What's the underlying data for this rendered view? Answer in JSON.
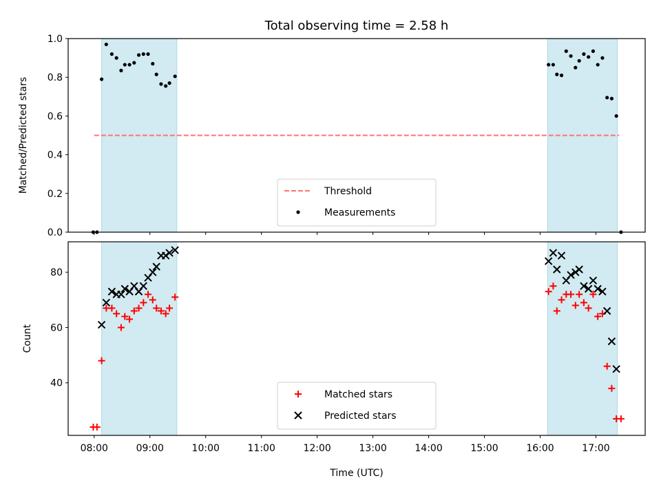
{
  "chart_data": {
    "type": "scatter",
    "title": "Total observing time = 2.58 h",
    "xlabel": "Time (UTC)",
    "x_ticks": [
      "08:00",
      "09:00",
      "10:00",
      "11:00",
      "12:00",
      "13:00",
      "14:00",
      "15:00",
      "16:00",
      "17:00"
    ],
    "xlim": [
      "07:32",
      "17:53"
    ],
    "observing_windows": [
      [
        "08:08",
        "09:29"
      ],
      [
        "16:08",
        "17:23"
      ]
    ],
    "shade_color": "#add8e6",
    "panels": [
      {
        "ylabel": "Matched/Predicted stars",
        "ylim": [
          0,
          1.0
        ],
        "y_ticks": [
          "0.0",
          "0.2",
          "0.4",
          "0.6",
          "0.8",
          "1.0"
        ],
        "threshold": {
          "name": "Threshold",
          "value": 0.5,
          "color": "#ff7070",
          "style": "dashed",
          "x_range": [
            "08:00",
            "17:25"
          ]
        },
        "series": [
          {
            "name": "Measurements",
            "marker": "dot",
            "color": "#000000",
            "points": [
              [
                "07:59",
                0.0
              ],
              [
                "08:03",
                0.0
              ],
              [
                "08:08",
                0.79
              ],
              [
                "08:13",
                0.97
              ],
              [
                "08:19",
                0.92
              ],
              [
                "08:24",
                0.9
              ],
              [
                "08:29",
                0.835
              ],
              [
                "08:33",
                0.865
              ],
              [
                "08:38",
                0.865
              ],
              [
                "08:43",
                0.875
              ],
              [
                "08:48",
                0.915
              ],
              [
                "08:53",
                0.92
              ],
              [
                "08:58",
                0.92
              ],
              [
                "09:03",
                0.87
              ],
              [
                "09:07",
                0.815
              ],
              [
                "09:12",
                0.765
              ],
              [
                "09:17",
                0.755
              ],
              [
                "09:21",
                0.77
              ],
              [
                "09:27",
                0.805
              ],
              [
                "16:09",
                0.865
              ],
              [
                "16:14",
                0.865
              ],
              [
                "16:18",
                0.815
              ],
              [
                "16:23",
                0.81
              ],
              [
                "16:28",
                0.935
              ],
              [
                "16:33",
                0.91
              ],
              [
                "16:38",
                0.85
              ],
              [
                "16:42",
                0.885
              ],
              [
                "16:47",
                0.92
              ],
              [
                "16:52",
                0.905
              ],
              [
                "16:57",
                0.935
              ],
              [
                "17:02",
                0.865
              ],
              [
                "17:07",
                0.9
              ],
              [
                "17:12",
                0.695
              ],
              [
                "17:17",
                0.69
              ],
              [
                "17:22",
                0.6
              ],
              [
                "17:27",
                0.0
              ]
            ]
          }
        ],
        "legend": {
          "placement": "lower center",
          "entries": [
            "Threshold",
            "Measurements"
          ]
        }
      },
      {
        "ylabel": "Count",
        "ylim": [
          21,
          91
        ],
        "y_ticks": [
          "40",
          "60",
          "80"
        ],
        "series": [
          {
            "name": "Matched stars",
            "marker": "plus",
            "color": "#ff0000",
            "points": [
              [
                "07:59",
                24
              ],
              [
                "08:03",
                24
              ],
              [
                "08:08",
                48
              ],
              [
                "08:13",
                67
              ],
              [
                "08:19",
                67
              ],
              [
                "08:24",
                65
              ],
              [
                "08:29",
                60
              ],
              [
                "08:33",
                64
              ],
              [
                "08:38",
                63
              ],
              [
                "08:43",
                66
              ],
              [
                "08:48",
                67
              ],
              [
                "08:53",
                69
              ],
              [
                "08:58",
                72
              ],
              [
                "09:03",
                70
              ],
              [
                "09:07",
                67
              ],
              [
                "09:12",
                66
              ],
              [
                "09:17",
                65
              ],
              [
                "09:21",
                67
              ],
              [
                "09:27",
                71
              ],
              [
                "16:09",
                73
              ],
              [
                "16:14",
                75
              ],
              [
                "16:18",
                66
              ],
              [
                "16:23",
                70
              ],
              [
                "16:28",
                72
              ],
              [
                "16:33",
                72
              ],
              [
                "16:38",
                68
              ],
              [
                "16:42",
                72
              ],
              [
                "16:47",
                69
              ],
              [
                "16:52",
                67
              ],
              [
                "16:57",
                72
              ],
              [
                "17:02",
                64
              ],
              [
                "17:07",
                65
              ],
              [
                "17:12",
                46
              ],
              [
                "17:17",
                38
              ],
              [
                "17:22",
                27
              ],
              [
                "17:27",
                27
              ]
            ]
          },
          {
            "name": "Predicted stars",
            "marker": "x",
            "color": "#000000",
            "points": [
              [
                "08:08",
                61
              ],
              [
                "08:13",
                69
              ],
              [
                "08:19",
                73
              ],
              [
                "08:24",
                72
              ],
              [
                "08:29",
                72
              ],
              [
                "08:33",
                74
              ],
              [
                "08:38",
                73
              ],
              [
                "08:43",
                75
              ],
              [
                "08:48",
                73
              ],
              [
                "08:53",
                75
              ],
              [
                "08:58",
                78
              ],
              [
                "09:03",
                80
              ],
              [
                "09:07",
                82
              ],
              [
                "09:12",
                86
              ],
              [
                "09:17",
                86
              ],
              [
                "09:21",
                87
              ],
              [
                "09:27",
                88
              ],
              [
                "16:09",
                84
              ],
              [
                "16:14",
                87
              ],
              [
                "16:18",
                81
              ],
              [
                "16:23",
                86
              ],
              [
                "16:28",
                77
              ],
              [
                "16:33",
                79
              ],
              [
                "16:38",
                80
              ],
              [
                "16:42",
                81
              ],
              [
                "16:47",
                75
              ],
              [
                "16:52",
                74
              ],
              [
                "16:57",
                77
              ],
              [
                "17:02",
                74
              ],
              [
                "17:07",
                73
              ],
              [
                "17:12",
                66
              ],
              [
                "17:17",
                55
              ],
              [
                "17:22",
                45
              ]
            ]
          }
        ],
        "legend": {
          "placement": "lower center",
          "entries": [
            "Matched stars",
            "Predicted stars"
          ]
        }
      }
    ]
  }
}
